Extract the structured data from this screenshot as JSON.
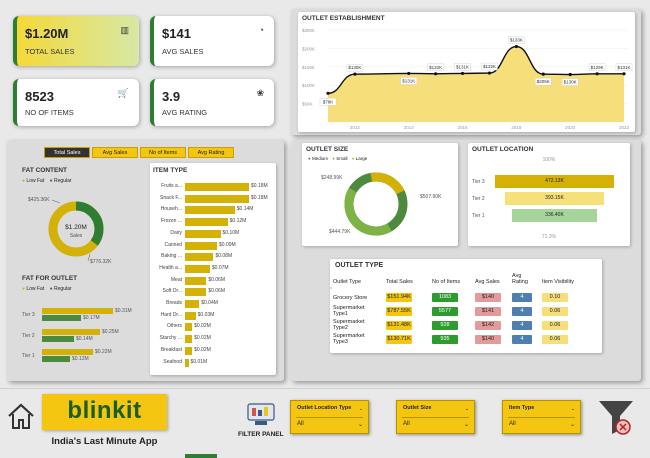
{
  "kpis": [
    {
      "value": "$1.20M",
      "label": "TOTAL SALES",
      "icon": "bar-chart-icon"
    },
    {
      "value": "$141",
      "label": "AVG SALES",
      "icon": "dollar-icon"
    },
    {
      "value": "8523",
      "label": "NO OF ITEMS",
      "icon": "cart-icon"
    },
    {
      "value": "3.9",
      "label": "AVG RATING",
      "icon": "paw-icon"
    }
  ],
  "metric_tabs": [
    "Total Sales",
    "Avg Sales",
    "No of Items",
    "Avg Rating"
  ],
  "fat_content": {
    "title": "FAT CONTENT",
    "legend": [
      "Low Fat",
      "Regular"
    ],
    "center": "$1.20M",
    "center_label": "Sales",
    "low_fat": "$776.32K",
    "regular": "$425.36K"
  },
  "fat_for_outlet": {
    "title": "FAT FOR OUTLET",
    "legend": [
      "Low Fat",
      "Regular"
    ],
    "tiers": [
      {
        "name": "Tier 3",
        "low": "$0.31M",
        "reg": "$0.17M"
      },
      {
        "name": "Tier 2",
        "low": "$0.25M",
        "reg": "$0.14M"
      },
      {
        "name": "Tier 1",
        "low": "$0.22M",
        "reg": "$0.12M"
      }
    ]
  },
  "item_type": {
    "title": "ITEM TYPE",
    "rows": [
      {
        "name": "Fruits a...",
        "val": "$0.18M",
        "num": 0.18
      },
      {
        "name": "Snack F...",
        "val": "$0.18M",
        "num": 0.18
      },
      {
        "name": "Househ...",
        "val": "$0.14M",
        "num": 0.14
      },
      {
        "name": "Frozen ...",
        "val": "$0.12M",
        "num": 0.12
      },
      {
        "name": "Dairy",
        "val": "$0.10M",
        "num": 0.1
      },
      {
        "name": "Canned",
        "val": "$0.09M",
        "num": 0.09
      },
      {
        "name": "Baking ...",
        "val": "$0.08M",
        "num": 0.08
      },
      {
        "name": "Health a...",
        "val": "$0.07M",
        "num": 0.07
      },
      {
        "name": "Meat",
        "val": "$0.06M",
        "num": 0.06
      },
      {
        "name": "Soft Dr...",
        "val": "$0.06M",
        "num": 0.06
      },
      {
        "name": "Breads",
        "val": "$0.04M",
        "num": 0.04
      },
      {
        "name": "Hard Dr...",
        "val": "$0.03M",
        "num": 0.03
      },
      {
        "name": "Others",
        "val": "$0.02M",
        "num": 0.02
      },
      {
        "name": "Starchy ...",
        "val": "$0.02M",
        "num": 0.02
      },
      {
        "name": "Breakfast",
        "val": "$0.02M",
        "num": 0.02
      },
      {
        "name": "Seafood",
        "val": "$0.01M",
        "num": 0.01
      }
    ]
  },
  "outlet_establishment": {
    "title": "OUTLET ESTABLISHMENT",
    "yticks": [
      "$250K",
      "$200K",
      "$150K",
      "$100K",
      "$50K"
    ],
    "xticks": [
      "2012",
      "2014",
      "2016",
      "2018",
      "2020",
      "2022"
    ],
    "labels": [
      "$78K",
      "$130K",
      "$131K",
      "$132K",
      "$131K",
      "$132K",
      "$133K",
      "$205K",
      "$130K",
      "$129K",
      "$131K"
    ]
  },
  "outlet_size": {
    "title": "OUTLET SIZE",
    "legend": [
      "Medium",
      "Small",
      "Large"
    ],
    "medium": "$507.90K",
    "small": "$444.79K",
    "large": "$248.99K"
  },
  "outlet_location": {
    "title": "OUTLET LOCATION",
    "top_pct": "100%",
    "bottom_pct": "71.3%",
    "tiers": [
      {
        "name": "Tier 3",
        "val": "472.13K"
      },
      {
        "name": "Tier 2",
        "val": "393.15K"
      },
      {
        "name": "Tier 1",
        "val": "336.40K"
      }
    ]
  },
  "outlet_type": {
    "title": "OUTLET TYPE",
    "headers": [
      "Outlet Type",
      "Total Sales",
      "No of Items",
      "Avg Sales",
      "Avg Rating",
      "Item Visibility"
    ],
    "rows": [
      [
        "Grocery Store",
        "$151.94K",
        "1083",
        "$140",
        "4",
        "0.10"
      ],
      [
        "Supermarket Type1",
        "$787.55K",
        "5577",
        "$141",
        "4",
        "0.06"
      ],
      [
        "Supermarket Type2",
        "$131.48K",
        "928",
        "$142",
        "4",
        "0.06"
      ],
      [
        "Supermarket Type3",
        "$130.71K",
        "935",
        "$140",
        "4",
        "0.06"
      ]
    ]
  },
  "brand": {
    "name": "blinkit",
    "tagline": "India's Last Minute App"
  },
  "filter_panel_label": "FILTER PANEL",
  "slicers": [
    {
      "label": "Outlet Location Type",
      "value": "All"
    },
    {
      "label": "Outlet Size",
      "value": "All"
    },
    {
      "label": "Item Type",
      "value": "All"
    }
  ],
  "colors": {
    "yellow": "#f4c612",
    "green": "#2e7d32",
    "light_green": "#7cb342",
    "accent_dark": "#333333"
  }
}
